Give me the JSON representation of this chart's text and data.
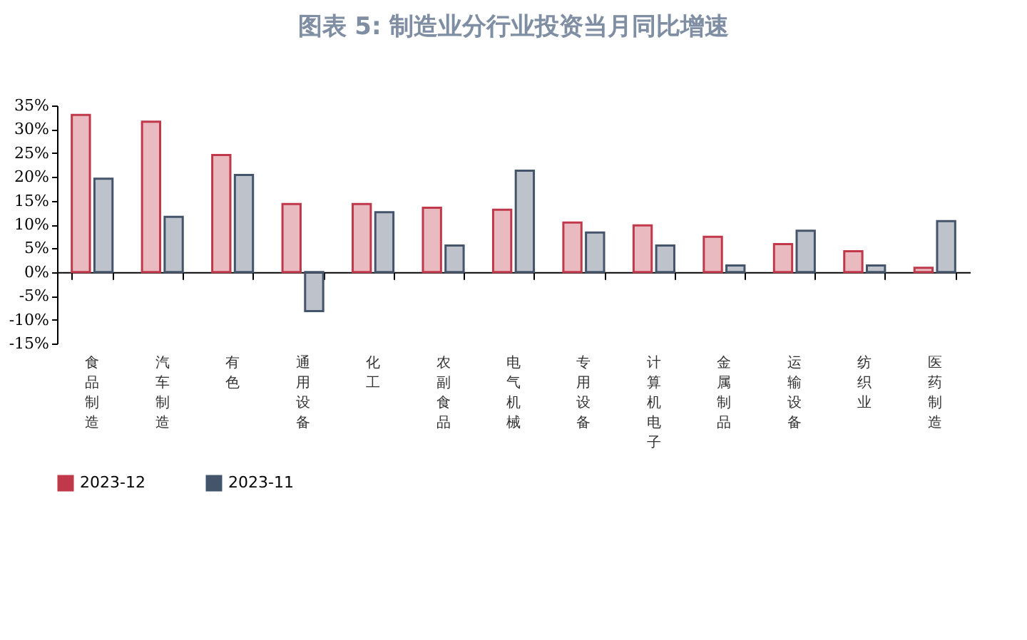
{
  "chart_data": {
    "type": "bar",
    "title": "图表 5:  制造业分行业投资当月同比增速",
    "categories": [
      "食品制造",
      "汽车制造",
      "有色",
      "通用设备",
      "化工",
      "农副食品",
      "电气机械",
      "专用设备",
      "计算机电子",
      "金属制品",
      "运输设备",
      "纺织业",
      "医药制造"
    ],
    "series": [
      {
        "name": "2023-12",
        "color": "#c0394b",
        "values": [
          33.0,
          31.6,
          24.6,
          14.3,
          14.3,
          13.5,
          13.1,
          10.4,
          9.8,
          7.4,
          5.9,
          4.4,
          0.9
        ]
      },
      {
        "name": "2023-11",
        "color": "#44546a",
        "values": [
          19.6,
          11.6,
          20.4,
          -8.2,
          12.6,
          5.6,
          21.3,
          8.3,
          5.6,
          1.4,
          8.7,
          1.4,
          10.7
        ]
      }
    ],
    "ylim": [
      -15,
      35
    ],
    "yticks": [
      {
        "value": -15,
        "label": "-15%"
      },
      {
        "value": -10,
        "label": "-10%"
      },
      {
        "value": -5,
        "label": "-5%"
      },
      {
        "value": 0,
        "label": "0%"
      },
      {
        "value": 5,
        "label": "5%"
      },
      {
        "value": 10,
        "label": "10%"
      },
      {
        "value": 15,
        "label": "15%"
      },
      {
        "value": 20,
        "label": "20%"
      },
      {
        "value": 25,
        "label": "25%"
      },
      {
        "value": 30,
        "label": "30%"
      },
      {
        "value": 35,
        "label": "35%"
      }
    ],
    "legend": "bottom"
  }
}
